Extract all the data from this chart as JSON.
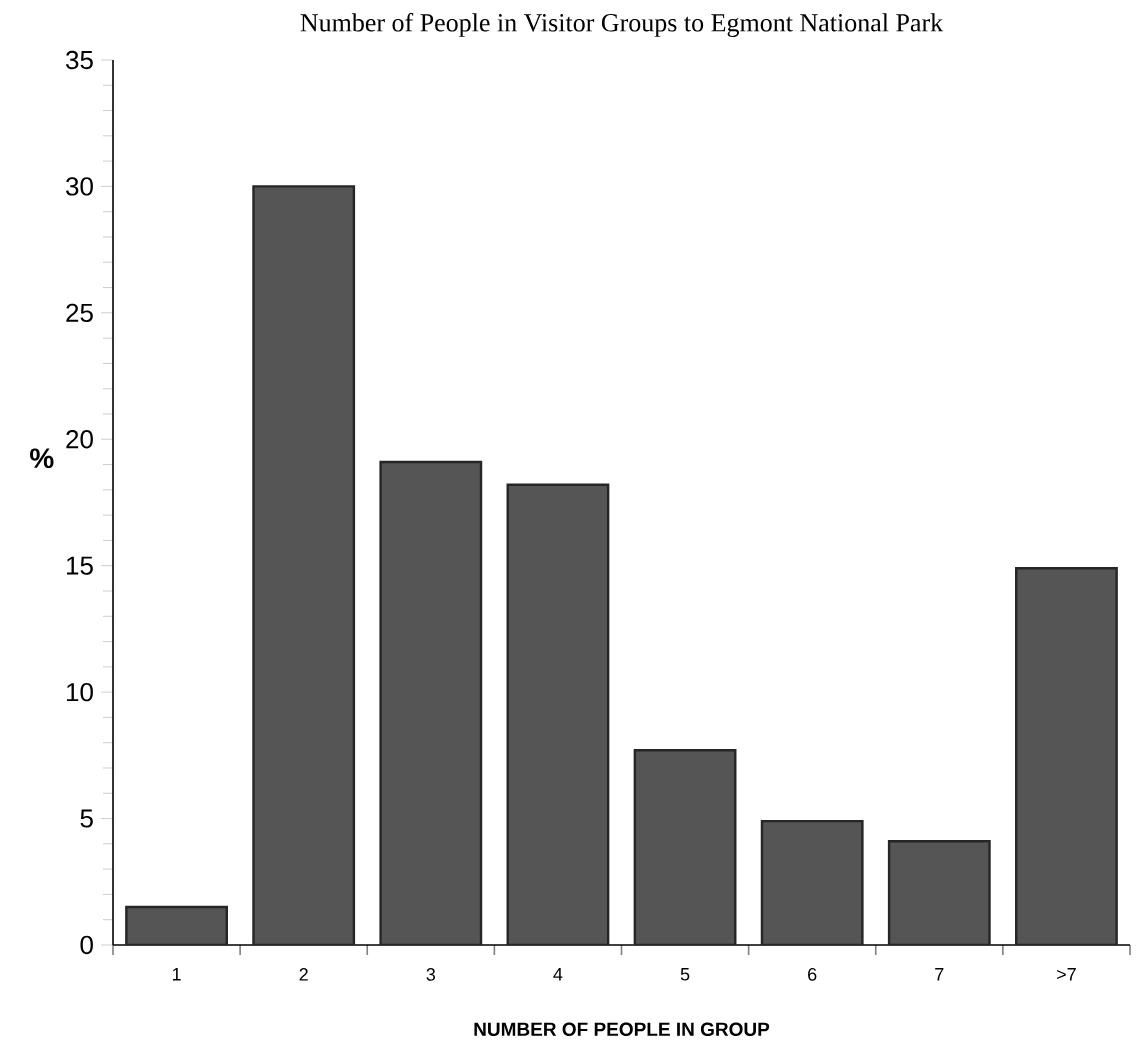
{
  "chart_data": {
    "type": "bar",
    "title": "Number of People in Visitor Groups to Egmont National Park",
    "xlabel": "NUMBER OF PEOPLE IN GROUP",
    "ylabel": "%",
    "categories": [
      "1",
      "2",
      "3",
      "4",
      "5",
      "6",
      "7",
      ">7"
    ],
    "values": [
      1.5,
      30,
      19.1,
      18.2,
      7.7,
      4.9,
      4.1,
      14.9
    ],
    "color": "#555555",
    "ylim": [
      0,
      35
    ],
    "yticks": [
      0,
      5,
      10,
      15,
      20,
      25,
      30,
      35
    ]
  }
}
